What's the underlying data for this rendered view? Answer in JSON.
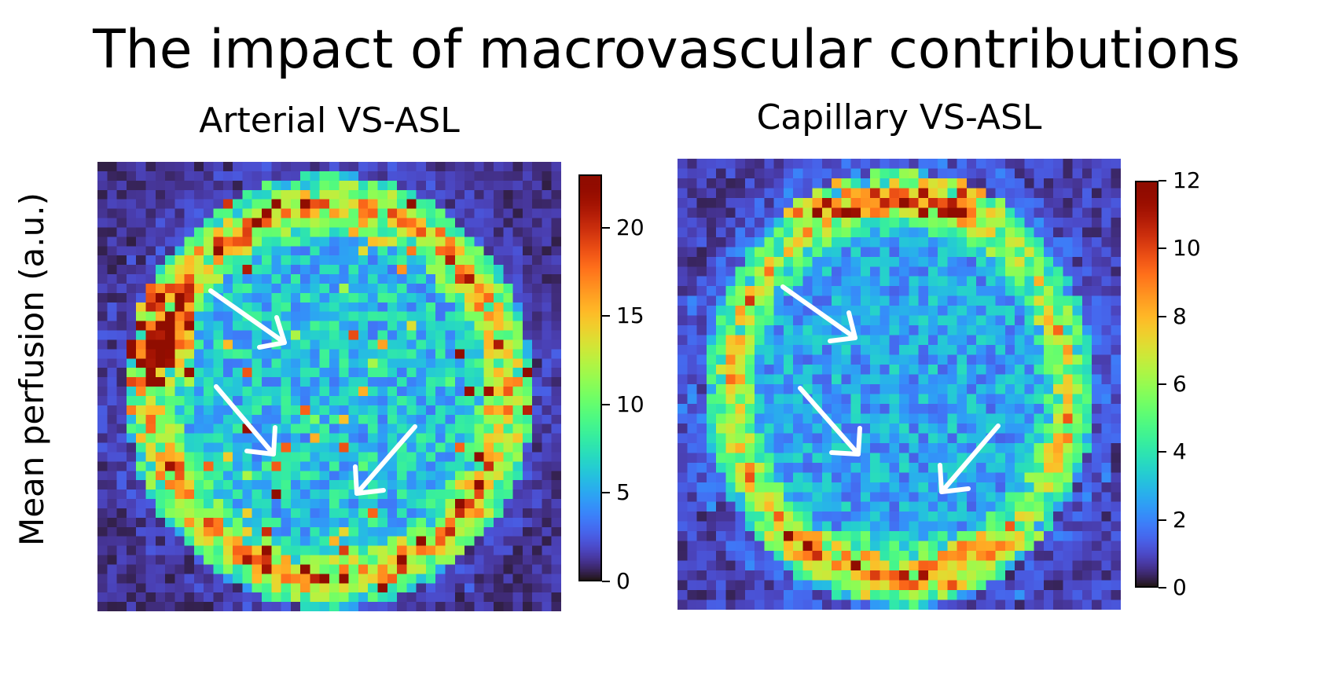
{
  "title": "The impact of macrovascular contributions",
  "ylabel": "Mean perfusion (a.u.)",
  "chart_data": [
    {
      "type": "heatmap",
      "title": "Arterial VS-ASL",
      "colormap": "turbo",
      "grid_size": [
        48,
        48
      ],
      "colorbar": {
        "vmin": 0,
        "vmax": 23,
        "ticks": [
          0,
          5,
          10,
          15,
          20
        ],
        "tick_labels": [
          "0",
          "5",
          "10",
          "15",
          "20"
        ]
      },
      "background_level": 1,
      "mean_tissue_level": 7,
      "rim_level": 14,
      "annotations": [
        {
          "type": "arrow",
          "color": "#ffffff",
          "count": 3
        }
      ]
    },
    {
      "type": "heatmap",
      "title": "Capillary VS-ASL",
      "colormap": "turbo",
      "grid_size": [
        46,
        46
      ],
      "colorbar": {
        "vmin": 0,
        "vmax": 12,
        "ticks": [
          0,
          2,
          4,
          6,
          8,
          10,
          12
        ],
        "tick_labels": [
          "0",
          "2",
          "4",
          "6",
          "8",
          "10",
          "12"
        ]
      },
      "background_level": 0.8,
      "mean_tissue_level": 3,
      "rim_level": 6,
      "annotations": [
        {
          "type": "arrow",
          "color": "#ffffff",
          "count": 3
        }
      ]
    }
  ]
}
